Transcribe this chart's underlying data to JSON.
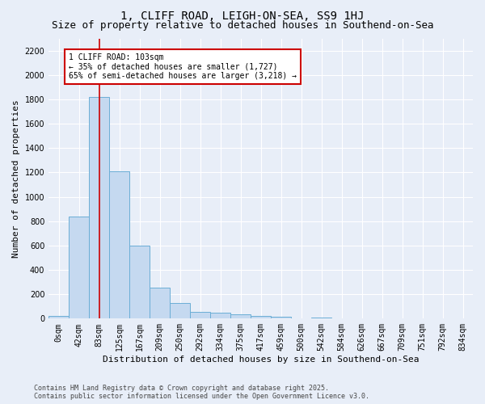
{
  "title": "1, CLIFF ROAD, LEIGH-ON-SEA, SS9 1HJ",
  "subtitle": "Size of property relative to detached houses in Southend-on-Sea",
  "xlabel": "Distribution of detached houses by size in Southend-on-Sea",
  "ylabel": "Number of detached properties",
  "bar_labels": [
    "0sqm",
    "42sqm",
    "83sqm",
    "125sqm",
    "167sqm",
    "209sqm",
    "250sqm",
    "292sqm",
    "334sqm",
    "375sqm",
    "417sqm",
    "459sqm",
    "500sqm",
    "542sqm",
    "584sqm",
    "626sqm",
    "667sqm",
    "709sqm",
    "751sqm",
    "792sqm",
    "834sqm"
  ],
  "bar_values": [
    25,
    840,
    1820,
    1210,
    600,
    255,
    125,
    52,
    50,
    35,
    20,
    15,
    0,
    12,
    0,
    0,
    0,
    0,
    0,
    0,
    0
  ],
  "bar_color": "#c5d9f0",
  "bar_edge_color": "#6baed6",
  "background_color": "#e8eef8",
  "grid_color": "#ffffff",
  "vline_x": 2.0,
  "vline_color": "#cc0000",
  "ylim": [
    0,
    2300
  ],
  "yticks": [
    0,
    200,
    400,
    600,
    800,
    1000,
    1200,
    1400,
    1600,
    1800,
    2000,
    2200
  ],
  "annotation_text": "1 CLIFF ROAD: 103sqm\n← 35% of detached houses are smaller (1,727)\n65% of semi-detached houses are larger (3,218) →",
  "annotation_box_color": "#ffffff",
  "annotation_box_edge_color": "#cc0000",
  "footer_line1": "Contains HM Land Registry data © Crown copyright and database right 2025.",
  "footer_line2": "Contains public sector information licensed under the Open Government Licence v3.0.",
  "title_fontsize": 10,
  "subtitle_fontsize": 9,
  "axis_label_fontsize": 8,
  "tick_fontsize": 7,
  "annotation_fontsize": 7,
  "footer_fontsize": 6
}
